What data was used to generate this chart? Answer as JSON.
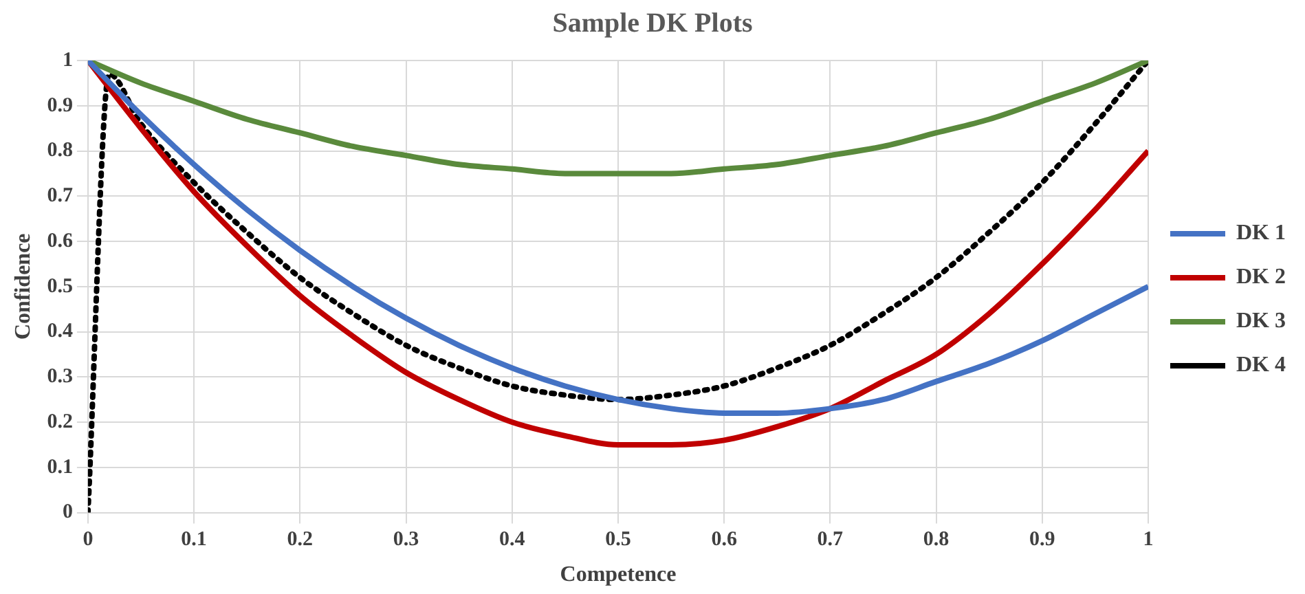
{
  "chart_data": {
    "type": "line",
    "title": "Sample DK Plots",
    "xlabel": "Competence",
    "ylabel": "Confidence",
    "x": [
      0,
      0.05,
      0.1,
      0.15,
      0.2,
      0.25,
      0.3,
      0.35,
      0.4,
      0.45,
      0.5,
      0.55,
      0.6,
      0.65,
      0.7,
      0.75,
      0.8,
      0.85,
      0.9,
      0.95,
      1
    ],
    "series": [
      {
        "name": "DK 1",
        "color": "#4472c4",
        "line_style": "solid",
        "values": [
          1,
          0.88,
          0.77,
          0.67,
          0.58,
          0.5,
          0.43,
          0.37,
          0.32,
          0.28,
          0.25,
          0.23,
          0.22,
          0.22,
          0.23,
          0.25,
          0.29,
          0.33,
          0.38,
          0.44,
          0.5
        ]
      },
      {
        "name": "DK 2",
        "color": "#c00000",
        "line_style": "solid",
        "values": [
          1,
          0.85,
          0.71,
          0.59,
          0.48,
          0.39,
          0.31,
          0.25,
          0.2,
          0.17,
          0.15,
          0.15,
          0.16,
          0.19,
          0.23,
          0.29,
          0.35,
          0.44,
          0.55,
          0.67,
          0.8
        ]
      },
      {
        "name": "DK 3",
        "color": "#5a8a3c",
        "line_style": "solid",
        "values": [
          1,
          0.95,
          0.91,
          0.87,
          0.84,
          0.81,
          0.79,
          0.77,
          0.76,
          0.75,
          0.75,
          0.75,
          0.76,
          0.77,
          0.79,
          0.81,
          0.84,
          0.87,
          0.91,
          0.95,
          1
        ]
      },
      {
        "name": "DK 4",
        "color": "#000000",
        "line_style": "dotted",
        "x": [
          0,
          0.02,
          0.05,
          0.1,
          0.15,
          0.2,
          0.25,
          0.3,
          0.35,
          0.4,
          0.45,
          0.5,
          0.55,
          0.6,
          0.65,
          0.7,
          0.75,
          0.8,
          0.85,
          0.9,
          0.95,
          1
        ],
        "values": [
          0,
          0.97,
          0.86,
          0.73,
          0.62,
          0.52,
          0.44,
          0.37,
          0.32,
          0.28,
          0.26,
          0.25,
          0.26,
          0.28,
          0.32,
          0.37,
          0.44,
          0.52,
          0.62,
          0.73,
          0.86,
          1
        ]
      }
    ],
    "xlim": [
      0,
      1
    ],
    "xticks": [
      0,
      0.1,
      0.2,
      0.3,
      0.4,
      0.5,
      0.6,
      0.7,
      0.8,
      0.9,
      1
    ],
    "ylim": [
      0,
      1
    ],
    "yticks": [
      0,
      0.1,
      0.2,
      0.3,
      0.4,
      0.5,
      0.6,
      0.7,
      0.8,
      0.9,
      1
    ],
    "grid": true,
    "legend": "right",
    "marker": "none"
  }
}
